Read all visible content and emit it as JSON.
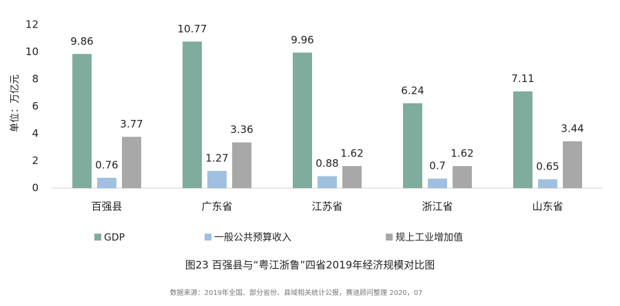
{
  "chart_data": {
    "type": "bar",
    "title": "图23 百强县与“粤江浙鲁”四省2019年经济规模对比图",
    "source": "数据来源：2019年全国、部分省份、县域相关统计公报，赛迪顾问整理 2020，07",
    "y_label": "单位：万亿元",
    "categories": [
      "百强县",
      "广东省",
      "江苏省",
      "浙江省",
      "山东省"
    ],
    "series": [
      {
        "name": "GDP",
        "color": "#7fac9c",
        "values": [
          9.86,
          10.77,
          9.96,
          6.24,
          7.11
        ]
      },
      {
        "name": "一般公共预算收入",
        "color": "#9fc0df",
        "values": [
          0.76,
          1.27,
          0.88,
          0.7,
          0.65
        ]
      },
      {
        "name": "规上工业增加值",
        "color": "#a8a8a8",
        "values": [
          3.77,
          3.36,
          1.62,
          1.62,
          3.44
        ]
      }
    ],
    "ylim": [
      0,
      12
    ],
    "yticks": [
      0,
      2,
      4,
      6,
      8,
      10,
      12
    ],
    "grid": false
  }
}
